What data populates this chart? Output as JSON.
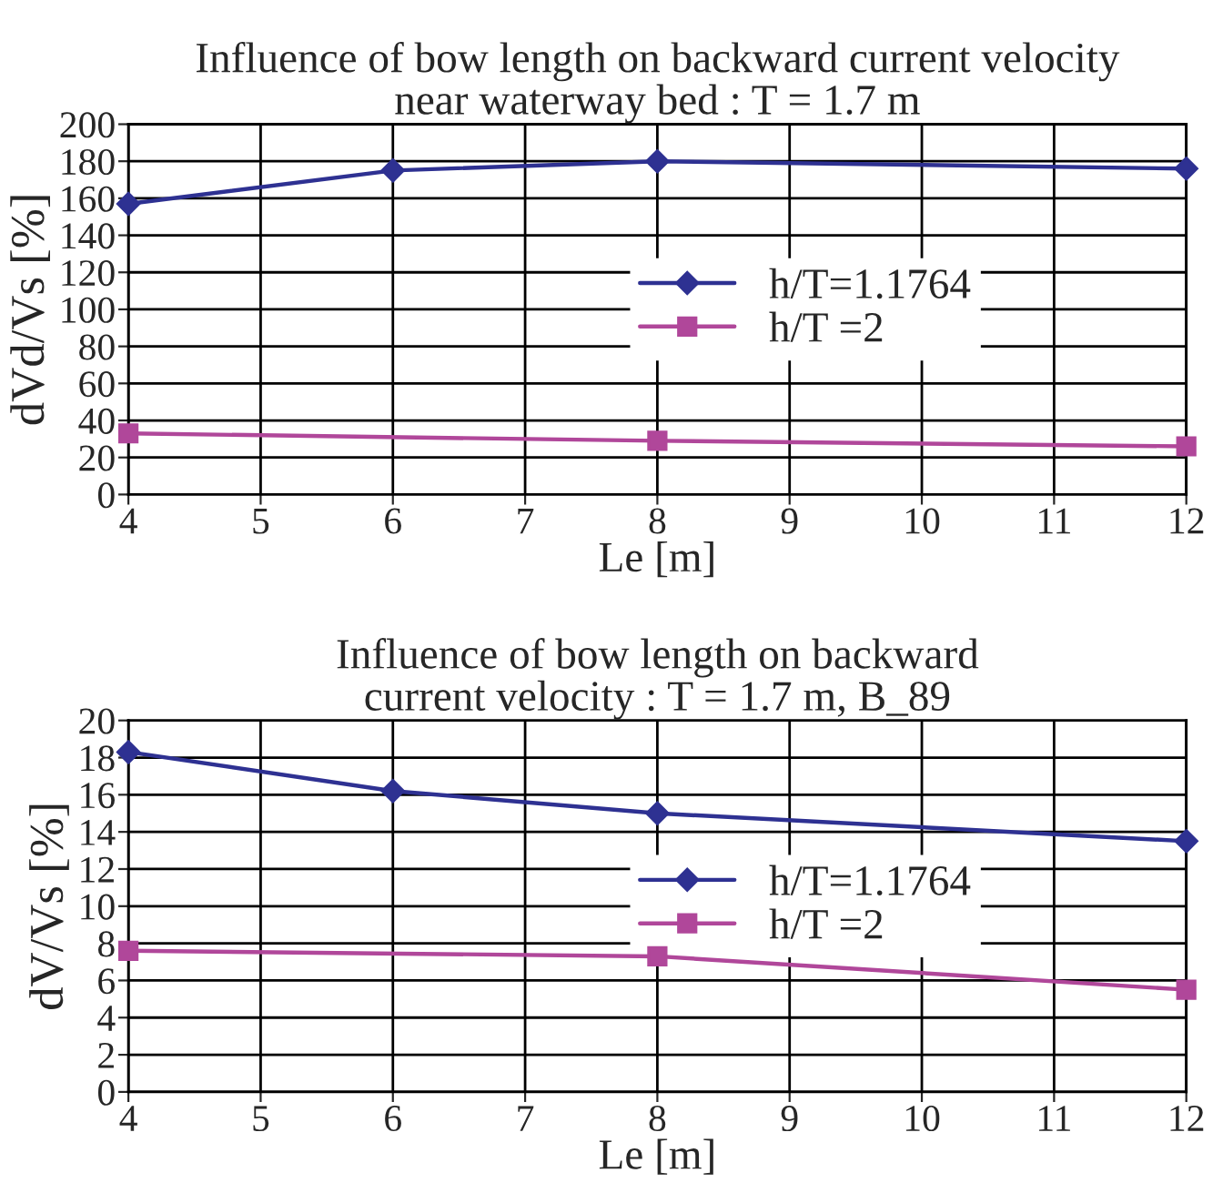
{
  "chart_data": [
    {
      "type": "line",
      "title": "Influence of bow length on backward current velocity\nnear waterway bed : T = 1.7 m",
      "xlabel": "Le [m]",
      "ylabel": "dVd/Vs [%]",
      "xlim": [
        4,
        12
      ],
      "xticks": [
        4,
        5,
        6,
        7,
        8,
        9,
        10,
        11,
        12
      ],
      "ylim": [
        0,
        200
      ],
      "yticks": [
        0,
        20,
        40,
        60,
        80,
        100,
        120,
        140,
        160,
        180,
        200
      ],
      "grid": true,
      "legend": "center",
      "series": [
        {
          "name": "h/T=1.1764",
          "color": "#2e3192",
          "marker": "diamond",
          "x": [
            4,
            6,
            8,
            12
          ],
          "values": [
            157,
            175,
            180,
            176
          ]
        },
        {
          "name": "h/T =2",
          "color": "#b0479a",
          "marker": "square",
          "x": [
            4,
            8,
            12
          ],
          "values": [
            33,
            29,
            26
          ]
        }
      ]
    },
    {
      "type": "line",
      "title": "Influence of bow length on backward\ncurrent velocity : T = 1.7 m, B_89",
      "xlabel": "Le [m]",
      "ylabel": "dV/Vs [%]",
      "xlim": [
        4,
        12
      ],
      "xticks": [
        4,
        5,
        6,
        7,
        8,
        9,
        10,
        11,
        12
      ],
      "ylim": [
        0,
        20
      ],
      "yticks": [
        0,
        2,
        4,
        6,
        8,
        10,
        12,
        14,
        16,
        18,
        20
      ],
      "grid": true,
      "legend": "center",
      "series": [
        {
          "name": "h/T=1.1764",
          "color": "#2e3192",
          "marker": "diamond",
          "x": [
            4,
            6,
            8,
            12
          ],
          "values": [
            18.3,
            16.2,
            15.0,
            13.5
          ]
        },
        {
          "name": "h/T =2",
          "color": "#b0479a",
          "marker": "square",
          "x": [
            4,
            8,
            12
          ],
          "values": [
            7.6,
            7.3,
            5.5
          ]
        }
      ]
    }
  ]
}
